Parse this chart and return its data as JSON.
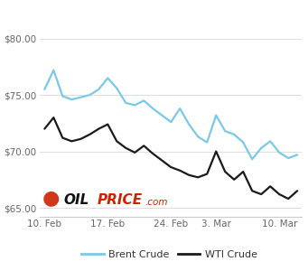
{
  "brent_x": [
    0,
    1,
    2,
    3,
    4,
    5,
    6,
    7,
    8,
    9,
    10,
    11,
    12,
    13,
    14,
    15,
    16,
    17,
    18,
    19,
    20,
    21,
    22,
    23,
    24,
    25,
    26,
    27,
    28
  ],
  "brent_y": [
    75.5,
    77.2,
    74.9,
    74.6,
    74.8,
    75.0,
    75.5,
    76.5,
    75.6,
    74.3,
    74.1,
    74.5,
    73.8,
    73.2,
    72.6,
    73.8,
    72.4,
    71.3,
    70.8,
    73.2,
    71.8,
    71.5,
    70.8,
    69.3,
    70.3,
    70.9,
    69.9,
    69.4,
    69.7
  ],
  "wti_x": [
    0,
    1,
    2,
    3,
    4,
    5,
    6,
    7,
    8,
    9,
    10,
    11,
    12,
    13,
    14,
    15,
    16,
    17,
    18,
    19,
    20,
    21,
    22,
    23,
    24,
    25,
    26,
    27,
    28
  ],
  "wti_y": [
    72.0,
    73.0,
    71.2,
    70.9,
    71.1,
    71.5,
    72.0,
    72.4,
    70.9,
    70.3,
    69.9,
    70.5,
    69.8,
    69.2,
    68.6,
    68.3,
    67.9,
    67.7,
    68.0,
    70.0,
    68.2,
    67.5,
    68.2,
    66.5,
    66.2,
    66.9,
    66.2,
    65.8,
    66.5
  ],
  "brent_color": "#7BC8E8",
  "wti_color": "#1a1a1a",
  "yticks": [
    65.0,
    70.0,
    75.0,
    80.0
  ],
  "ylim": [
    64.2,
    81.5
  ],
  "xlim": [
    -0.5,
    28.5
  ],
  "xtick_positions": [
    0,
    7,
    14,
    19,
    26
  ],
  "xtick_labels": [
    "10. Feb",
    "17. Feb",
    "24. Feb",
    "3. Mar",
    "10. Mar"
  ],
  "grid_color": "#dddddd",
  "background_color": "#ffffff",
  "legend_brent": "Brent Crude",
  "legend_wti": "WTI Crude",
  "tick_color": "#666666",
  "tick_fontsize": 7.5,
  "spine_color": "#cccccc",
  "linewidth": 1.6
}
